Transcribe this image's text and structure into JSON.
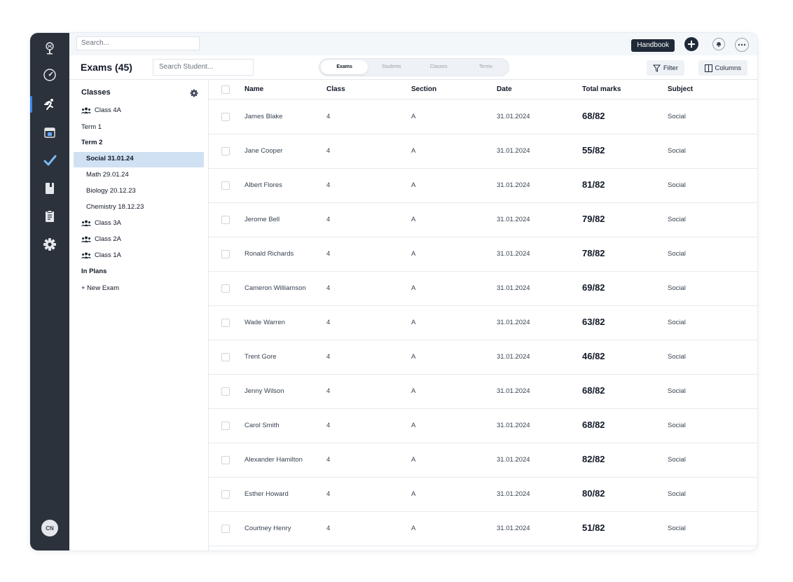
{
  "app": {
    "title": "Exams (45)",
    "handbook_label": "Handbook",
    "avatar_initials": "CN"
  },
  "search": {
    "top_placeholder": "Search...",
    "student_placeholder": "Search Student..."
  },
  "tabs": [
    {
      "label": "Exams",
      "active": true
    },
    {
      "label": "Students",
      "active": false
    },
    {
      "label": "Classes",
      "active": false
    },
    {
      "label": "Terms",
      "active": false
    }
  ],
  "toolbar": {
    "filter_label": "Filter",
    "columns_label": "Columns"
  },
  "sidebar": {
    "heading": "Classes",
    "items": [
      {
        "label": "Class 4A",
        "icon": "users-icon",
        "bold": false
      },
      {
        "label": "Term 1",
        "icon": "",
        "bold": false
      },
      {
        "label": "Term 2",
        "icon": "",
        "bold": true
      },
      {
        "label": "Social 31.01.24",
        "icon": "",
        "bold": true,
        "selected": true
      },
      {
        "label": "Math 29.01.24",
        "icon": "",
        "bold": false
      },
      {
        "label": "Biology 20.12.23",
        "icon": "",
        "bold": false
      },
      {
        "label": "Chemistry 18.12.23",
        "icon": "",
        "bold": false
      },
      {
        "label": "Class 3A",
        "icon": "users-icon",
        "bold": false
      },
      {
        "label": "Class 2A",
        "icon": "users-icon",
        "bold": false
      },
      {
        "label": "Class 1A",
        "icon": "users-icon",
        "bold": false
      },
      {
        "label": "In Plans",
        "icon": "",
        "bold": true
      },
      {
        "label": "+ New Exam",
        "icon": "",
        "bold": false
      }
    ]
  },
  "table": {
    "columns": [
      "Name",
      "Class",
      "Section",
      "Date",
      "Total marks",
      "Subject"
    ],
    "rows": [
      {
        "name": "James Blake",
        "class": "4",
        "section": "A",
        "date": "31.01.2024",
        "marks": "68/82",
        "subject": "Social"
      },
      {
        "name": "Jane Cooper",
        "class": "4",
        "section": "A",
        "date": "31.01.2024",
        "marks": "55/82",
        "subject": "Social"
      },
      {
        "name": "Albert Flores",
        "class": "4",
        "section": "A",
        "date": "31.01.2024",
        "marks": "81/82",
        "subject": "Social"
      },
      {
        "name": "Jerome Bell",
        "class": "4",
        "section": "A",
        "date": "31.01.2024",
        "marks": "79/82",
        "subject": "Social"
      },
      {
        "name": "Ronald Richards",
        "class": "4",
        "section": "A",
        "date": "31.01.2024",
        "marks": "78/82",
        "subject": "Social"
      },
      {
        "name": "Cameron Williamson",
        "class": "4",
        "section": "A",
        "date": "31.01.2024",
        "marks": "69/82",
        "subject": "Social"
      },
      {
        "name": "Wade Warren",
        "class": "4",
        "section": "A",
        "date": "31.01.2024",
        "marks": "63/82",
        "subject": "Social"
      },
      {
        "name": "Trent Gore",
        "class": "4",
        "section": "A",
        "date": "31.01.2024",
        "marks": "46/82",
        "subject": "Social"
      },
      {
        "name": "Jenny Wilson",
        "class": "4",
        "section": "A",
        "date": "31.01.2024",
        "marks": "68/82",
        "subject": "Social"
      },
      {
        "name": "Carol Smith",
        "class": "4",
        "section": "A",
        "date": "31.01.2024",
        "marks": "68/82",
        "subject": "Social"
      },
      {
        "name": "Alexander Hamilton",
        "class": "4",
        "section": "A",
        "date": "31.01.2024",
        "marks": "82/82",
        "subject": "Social"
      },
      {
        "name": "Esther Howard",
        "class": "4",
        "section": "A",
        "date": "31.01.2024",
        "marks": "80/82",
        "subject": "Social"
      },
      {
        "name": "Courtney Henry",
        "class": "4",
        "section": "A",
        "date": "31.01.2024",
        "marks": "51/82",
        "subject": "Social"
      }
    ]
  },
  "rail_icons": [
    "logo-icon",
    "speedometer-icon",
    "running-icon",
    "calendar-icon",
    "check-icon",
    "book-icon",
    "clipboard-icon",
    "settings-icon"
  ],
  "colors": {
    "rail_bg": "#2b323b",
    "selected_bg": "#cfe1f2",
    "accent": "#3b82f6"
  }
}
